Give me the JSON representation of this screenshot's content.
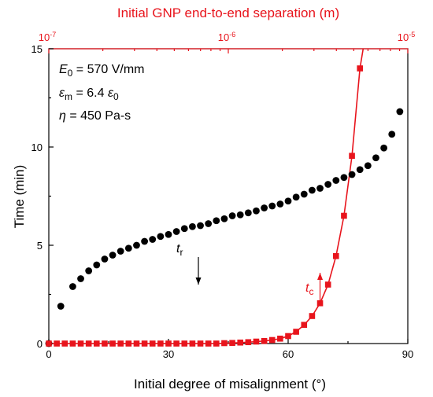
{
  "chart_data": {
    "type": "scatter",
    "x_axis_bottom": {
      "label": "Initial degree of misalignment  (°)",
      "range": [
        0,
        90
      ],
      "ticks": [
        0,
        30,
        60,
        90
      ],
      "tick_labels": [
        "0",
        "30",
        "60",
        "90"
      ]
    },
    "x_axis_top": {
      "label": "Initial GNP end-to-end separation (m)",
      "scale": "log",
      "range": [
        1e-07,
        1e-05
      ],
      "tick_labels": [
        {
          "base": "10",
          "exp": "-7"
        },
        {
          "base": "10",
          "exp": "-6"
        },
        {
          "base": "10",
          "exp": "-5"
        }
      ],
      "color": "#e8141c"
    },
    "y_axis": {
      "label": "Time (min)",
      "range": [
        0,
        15
      ],
      "ticks": [
        0,
        5,
        10,
        15
      ],
      "tick_labels": [
        "0",
        "5",
        "10",
        "15"
      ]
    },
    "annotations": {
      "E0": {
        "sym": "E",
        "sub": "0",
        "rest": " = 570 V/mm"
      },
      "eps": {
        "sym": "ε",
        "sub": "m",
        "rest1": " = 6.4 ",
        "sym2": "ε",
        "sub2": "0"
      },
      "eta": {
        "sym": "η",
        "rest": " = 450 Pa-s"
      },
      "tr": {
        "sym": "t",
        "sub": "r"
      },
      "tc": {
        "sym": "t",
        "sub": "c"
      }
    },
    "series": [
      {
        "name": "t_r",
        "color": "#000000",
        "marker": "circle",
        "points": [
          [
            0,
            0
          ],
          [
            3,
            1.9
          ],
          [
            6,
            2.9
          ],
          [
            8,
            3.3
          ],
          [
            10,
            3.7
          ],
          [
            12,
            4.0
          ],
          [
            14,
            4.3
          ],
          [
            16,
            4.5
          ],
          [
            18,
            4.7
          ],
          [
            20,
            4.85
          ],
          [
            22,
            5.0
          ],
          [
            24,
            5.2
          ],
          [
            26,
            5.3
          ],
          [
            28,
            5.45
          ],
          [
            30,
            5.55
          ],
          [
            32,
            5.7
          ],
          [
            34,
            5.85
          ],
          [
            36,
            5.95
          ],
          [
            38,
            6.0
          ],
          [
            40,
            6.1
          ],
          [
            42,
            6.25
          ],
          [
            44,
            6.35
          ],
          [
            46,
            6.5
          ],
          [
            48,
            6.55
          ],
          [
            50,
            6.65
          ],
          [
            52,
            6.75
          ],
          [
            54,
            6.9
          ],
          [
            56,
            7.0
          ],
          [
            58,
            7.1
          ],
          [
            60,
            7.25
          ],
          [
            62,
            7.45
          ],
          [
            64,
            7.6
          ],
          [
            66,
            7.8
          ],
          [
            68,
            7.9
          ],
          [
            70,
            8.1
          ],
          [
            72,
            8.3
          ],
          [
            74,
            8.45
          ],
          [
            76,
            8.6
          ],
          [
            78,
            8.85
          ],
          [
            80,
            9.05
          ],
          [
            82,
            9.45
          ],
          [
            84,
            9.95
          ],
          [
            86,
            10.65
          ],
          [
            88,
            11.8
          ]
        ]
      },
      {
        "name": "t_c",
        "color": "#e8141c",
        "marker": "square",
        "points": [
          [
            0,
            0
          ],
          [
            2,
            0
          ],
          [
            4,
            0
          ],
          [
            6,
            0
          ],
          [
            8,
            0
          ],
          [
            10,
            0
          ],
          [
            12,
            0
          ],
          [
            14,
            0
          ],
          [
            16,
            0
          ],
          [
            18,
            0
          ],
          [
            20,
            0
          ],
          [
            22,
            0
          ],
          [
            24,
            0
          ],
          [
            26,
            0
          ],
          [
            28,
            0
          ],
          [
            30,
            0
          ],
          [
            32,
            0
          ],
          [
            34,
            0
          ],
          [
            36,
            0
          ],
          [
            38,
            0
          ],
          [
            40,
            0
          ],
          [
            42,
            0
          ],
          [
            44,
            0.02
          ],
          [
            46,
            0.03
          ],
          [
            48,
            0.05
          ],
          [
            50,
            0.07
          ],
          [
            52,
            0.1
          ],
          [
            54,
            0.13
          ],
          [
            56,
            0.18
          ],
          [
            58,
            0.25
          ],
          [
            60,
            0.38
          ],
          [
            62,
            0.6
          ],
          [
            64,
            0.95
          ],
          [
            66,
            1.4
          ],
          [
            68,
            2.05
          ],
          [
            70,
            3.0
          ],
          [
            72,
            4.45
          ],
          [
            74,
            6.5
          ],
          [
            76,
            9.55
          ],
          [
            78,
            14.0
          ]
        ]
      }
    ],
    "arrows": [
      {
        "name": "t_r",
        "from": [
          37.5,
          4.4
        ],
        "to": [
          37.5,
          3.0
        ],
        "color": "#000000"
      },
      {
        "name": "t_c",
        "from": [
          68,
          2.2
        ],
        "to": [
          68,
          3.6
        ],
        "color": "#e8141c"
      }
    ]
  }
}
